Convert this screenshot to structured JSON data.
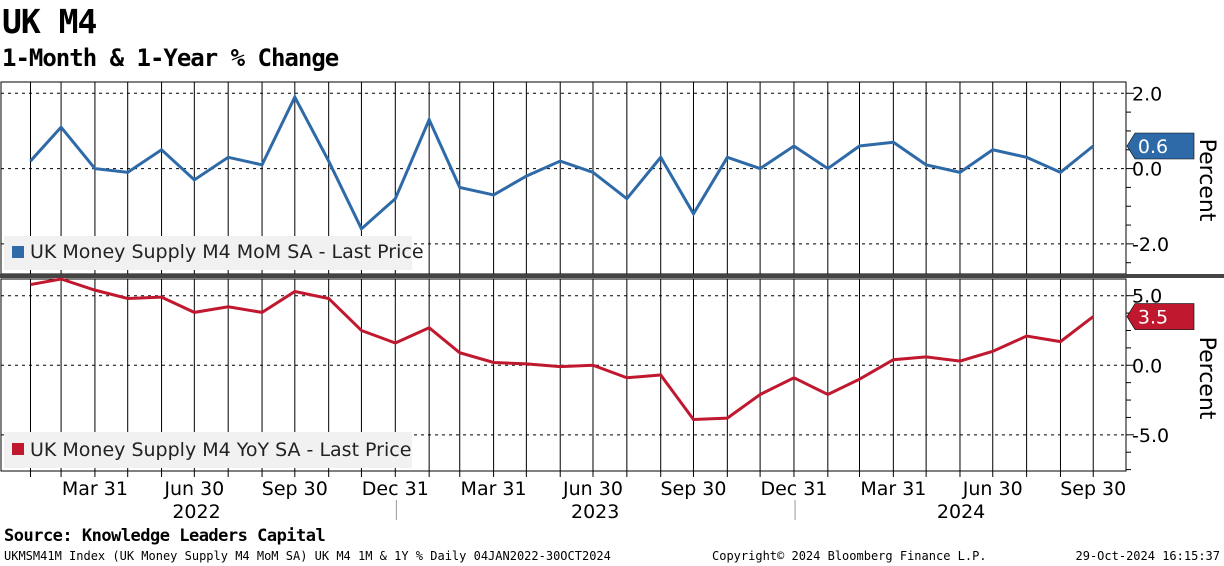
{
  "header": {
    "title": "UK M4",
    "subtitle": "1-Month & 1-Year % Change"
  },
  "footer": {
    "source": "Source: Knowledge Leaders Capital",
    "security": "UKMSM41M Index (UK Money Supply M4 MoM SA) UK M4 1M & 1Y %  Daily 04JAN2022-30OCT2024",
    "copyright": "Copyright© 2024 Bloomberg Finance L.P.",
    "timestamp": "29-Oct-2024 16:15:37"
  },
  "chart_data": [
    {
      "type": "line",
      "panel": "top",
      "ylabel": "Percent",
      "ylim": [
        -2.8,
        2.3
      ],
      "yticks": [
        2.0,
        0.0,
        -2.0
      ],
      "ytick_labels": [
        "2.0",
        "0.0",
        "-2.0"
      ],
      "legend": "UK Money Supply M4 MoM SA - Last Price",
      "legend_position": "bottom-left",
      "last_value_label": "0.6",
      "color": "#2f6aa8",
      "x": [
        "2022-01-31",
        "2022-02-28",
        "2022-03-31",
        "2022-04-30",
        "2022-05-31",
        "2022-06-30",
        "2022-07-31",
        "2022-08-31",
        "2022-09-30",
        "2022-10-31",
        "2022-11-30",
        "2022-12-31",
        "2023-01-31",
        "2023-02-28",
        "2023-03-31",
        "2023-04-30",
        "2023-05-31",
        "2023-06-30",
        "2023-07-31",
        "2023-08-31",
        "2023-09-30",
        "2023-10-31",
        "2023-11-30",
        "2023-12-31",
        "2024-01-31",
        "2024-02-29",
        "2024-03-31",
        "2024-04-30",
        "2024-05-31",
        "2024-06-30",
        "2024-07-31",
        "2024-08-31",
        "2024-09-30"
      ],
      "values": [
        0.2,
        1.1,
        0.0,
        -0.1,
        0.5,
        -0.3,
        0.3,
        0.1,
        1.9,
        0.2,
        -1.6,
        -0.8,
        1.3,
        -0.5,
        -0.7,
        -0.2,
        0.2,
        -0.1,
        -0.8,
        0.3,
        -1.2,
        0.3,
        0.0,
        0.6,
        0.0,
        0.6,
        0.7,
        0.1,
        -0.1,
        0.5,
        0.3,
        -0.1,
        0.6
      ]
    },
    {
      "type": "line",
      "panel": "bottom",
      "ylabel": "Percent",
      "ylim": [
        -7.6,
        6.2
      ],
      "yticks": [
        5.0,
        0.0,
        -5.0
      ],
      "ytick_labels": [
        "5.0",
        "0.0",
        "-5.0"
      ],
      "legend": "UK Money Supply M4 YoY SA - Last Price",
      "legend_position": "bottom-left",
      "last_value_label": "3.5",
      "color": "#c0182f",
      "x": [
        "2022-01-31",
        "2022-02-28",
        "2022-03-31",
        "2022-04-30",
        "2022-05-31",
        "2022-06-30",
        "2022-07-31",
        "2022-08-31",
        "2022-09-30",
        "2022-10-31",
        "2022-11-30",
        "2022-12-31",
        "2023-01-31",
        "2023-02-28",
        "2023-03-31",
        "2023-04-30",
        "2023-05-31",
        "2023-06-30",
        "2023-07-31",
        "2023-08-31",
        "2023-09-30",
        "2023-10-31",
        "2023-11-30",
        "2023-12-31",
        "2024-01-31",
        "2024-02-29",
        "2024-03-31",
        "2024-04-30",
        "2024-05-31",
        "2024-06-30",
        "2024-07-31",
        "2024-08-31",
        "2024-09-30"
      ],
      "values": [
        5.8,
        6.2,
        5.4,
        4.8,
        4.9,
        3.8,
        4.2,
        3.8,
        5.3,
        4.8,
        2.5,
        1.6,
        2.7,
        0.9,
        0.2,
        0.1,
        -0.1,
        0.0,
        -0.9,
        -0.7,
        -3.9,
        -3.8,
        -2.1,
        -0.9,
        -2.1,
        -1.0,
        0.4,
        0.6,
        0.3,
        1.0,
        2.1,
        1.7,
        3.5
      ]
    }
  ],
  "x_axis": {
    "tick_labels": [
      "Mar 31",
      "Jun 30",
      "Sep 30",
      "Dec 31",
      "Mar 31",
      "Jun 30",
      "Sep 30",
      "Dec 31",
      "Mar 31",
      "Jun 30",
      "Sep 30"
    ],
    "year_labels": [
      "2022",
      "2023",
      "2024"
    ]
  }
}
